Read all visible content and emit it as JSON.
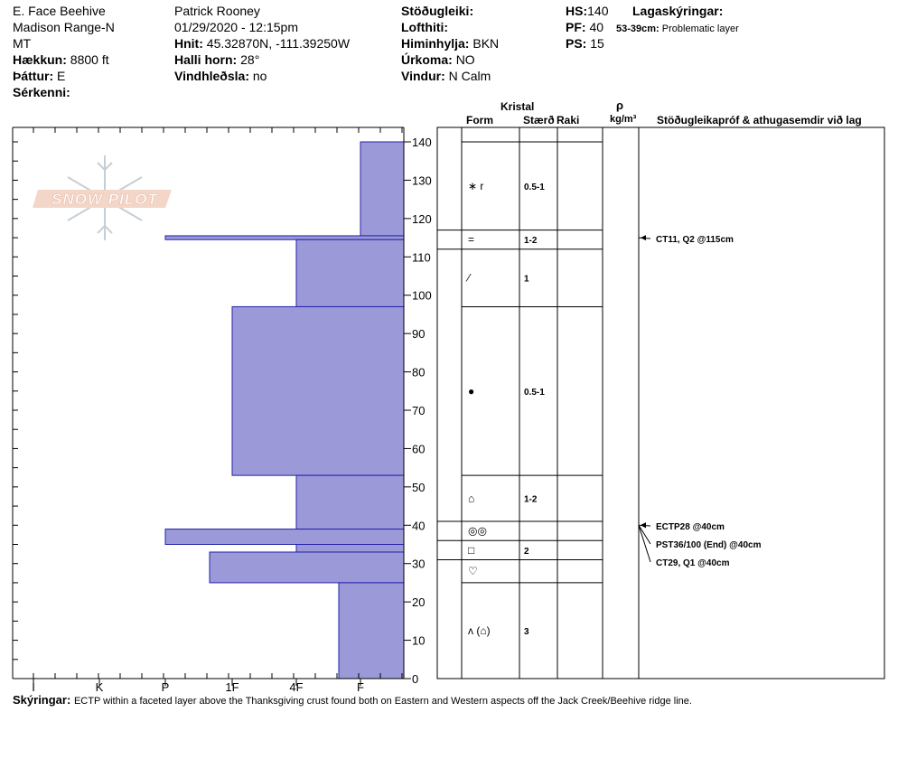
{
  "header": {
    "location": "E. Face Beehive",
    "range": "Madison Range-N",
    "state": "MT",
    "elevation_label": "Hækkun:",
    "elevation_value": "8800 ft",
    "aspect_label": "Þáttur:",
    "aspect_value": "E",
    "specifics_label": "Sérkenni:",
    "observer": "Patrick Rooney",
    "datetime": "01/29/2020 - 12:15pm",
    "coords_label": "Hnit:",
    "coords_value": "45.32870N, -111.39250W",
    "slope_label": "Halli horn:",
    "slope_value": "28°",
    "wind_loading_label": "Vindhleðsla:",
    "wind_loading_value": "no",
    "stability_label": "Stöðugleiki:",
    "air_temp_label": "Lofthiti:",
    "sky_label": "Himinhylja:",
    "sky_value": "BKN",
    "precip_label": "Úrkoma:",
    "precip_value": "NO",
    "wind_label": "Vindur:",
    "wind_value": "N Calm",
    "hs_label": "HS:",
    "hs_value": "140",
    "pf_label": "PF:",
    "pf_value": "40",
    "ps_label": "PS:",
    "ps_value": "15",
    "layer_notes_title": "Lagaskýringar:",
    "layer_note_range": "53-39cm:",
    "layer_note_text": "Problematic layer"
  },
  "logo_text": "SNOW PILOT",
  "table_header": {
    "crystal": "Kristal",
    "form": "Form",
    "size": "Stærð",
    "moisture": "Raki",
    "density_symbol": "ρ",
    "density_unit": "kg/m³",
    "tests": "Stöðugleikapróf & athugasemdir við lag"
  },
  "footer": {
    "label": "Skýringar:",
    "text": "ECTP within a faceted layer above the Thanksgiving crust found both on Eastern and Western aspects off the Jack Creek/Beehive ridge line."
  },
  "colors": {
    "hardness_fill": "#9c99d8",
    "hardness_stroke": "#2222aa"
  },
  "chart_data": {
    "type": "bar",
    "orientation": "horizontal-profile",
    "y_axis": {
      "min": 0,
      "max": 140,
      "ticks": [
        0,
        10,
        20,
        30,
        40,
        50,
        60,
        70,
        80,
        90,
        100,
        110,
        120,
        130,
        140
      ],
      "unit": "cm"
    },
    "x_axis": {
      "categories": [
        "I",
        "K",
        "P",
        "1F",
        "4F",
        "F"
      ],
      "reversed": true
    },
    "hardness_layers": [
      {
        "top": 140,
        "bottom": 115.5,
        "hardness": "F"
      },
      {
        "top": 115.5,
        "bottom": 114.5,
        "hardness": "P"
      },
      {
        "top": 114.5,
        "bottom": 97,
        "hardness": "4F"
      },
      {
        "top": 97,
        "bottom": 53,
        "hardness": "1F"
      },
      {
        "top": 53,
        "bottom": 39,
        "hardness": "4F"
      },
      {
        "top": 39,
        "bottom": 35,
        "hardness": "P"
      },
      {
        "top": 35,
        "bottom": 33,
        "hardness": "4F"
      },
      {
        "top": 33,
        "bottom": 25,
        "hardness": "1F-"
      },
      {
        "top": 25,
        "bottom": 0,
        "hardness": "F+"
      }
    ],
    "layers": [
      {
        "top": 140,
        "bottom": 117,
        "form": "∗ r",
        "size": "0.5-1"
      },
      {
        "top": 117,
        "bottom": 112,
        "form": "=",
        "size": "1-2"
      },
      {
        "top": 112,
        "bottom": 97,
        "form": "⁄",
        "size": "1"
      },
      {
        "top": 97,
        "bottom": 53,
        "form": "●",
        "size": "0.5-1"
      },
      {
        "top": 53,
        "bottom": 41,
        "form": "⌂",
        "size": "1-2"
      },
      {
        "top": 41,
        "bottom": 36,
        "form": "◎◎",
        "size": ""
      },
      {
        "top": 36,
        "bottom": 31,
        "form": "□",
        "size": "2"
      },
      {
        "top": 31,
        "bottom": 25,
        "form": "♡",
        "size": ""
      },
      {
        "top": 25,
        "bottom": 0,
        "form": "ʌ (⌂)",
        "size": "3"
      }
    ],
    "tests": [
      {
        "depth": 115,
        "label": "CT11, Q2 @115cm"
      },
      {
        "depth": 40,
        "label": "ECTP28 @40cm"
      },
      {
        "depth": 40,
        "label": "PST36/100 (End) @40cm"
      },
      {
        "depth": 40,
        "label": "CT29, Q1 @40cm"
      }
    ]
  }
}
